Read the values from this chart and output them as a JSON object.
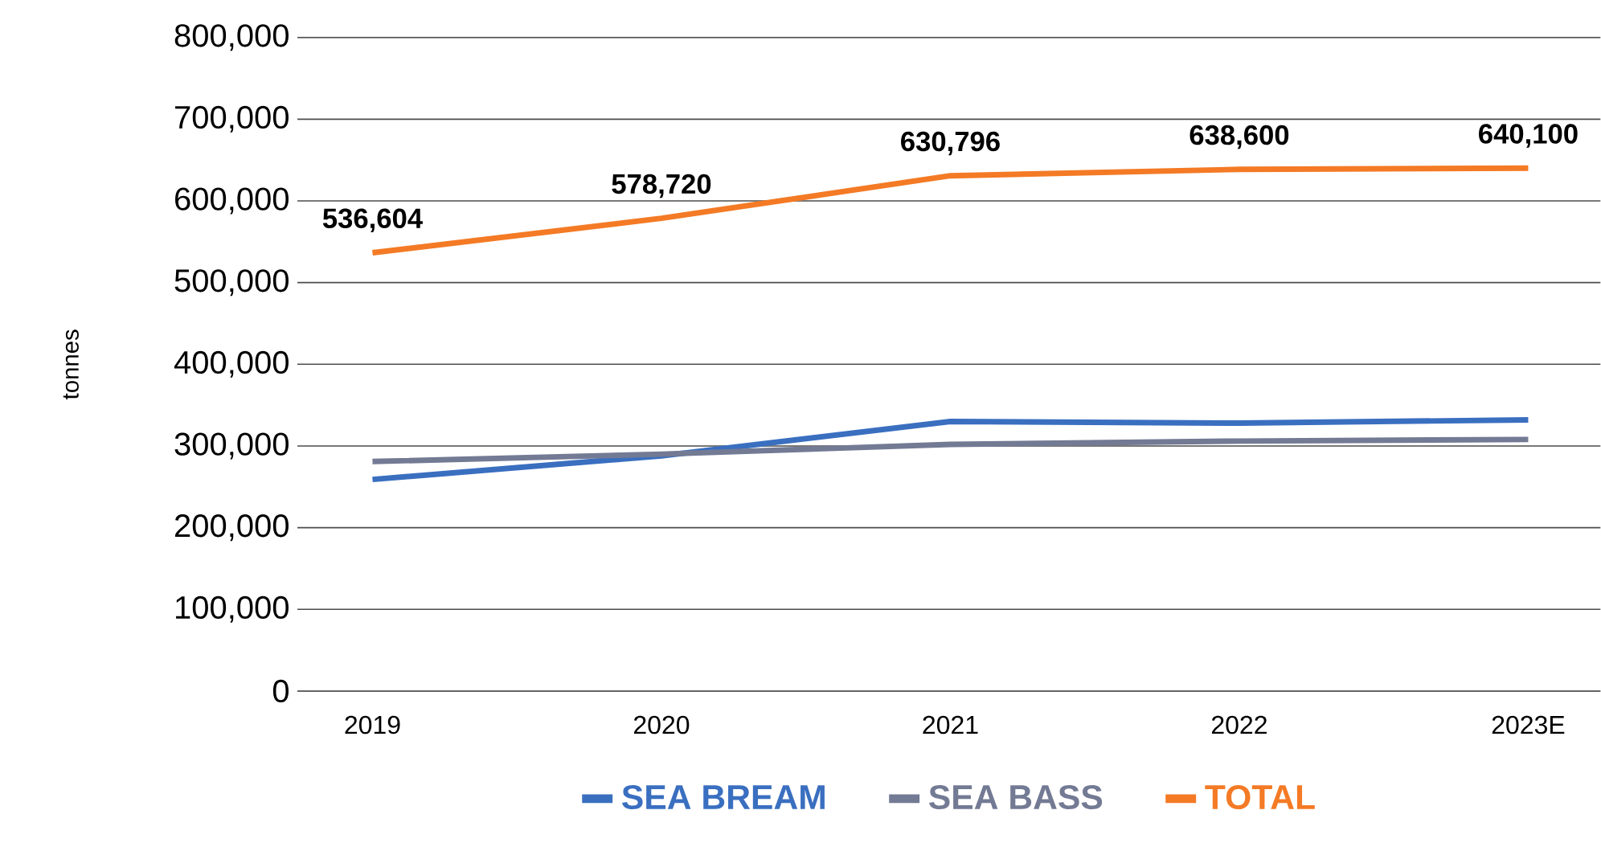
{
  "chart_data": {
    "type": "line",
    "ylabel": "tonnes",
    "categories": [
      "2019",
      "2020",
      "2021",
      "2022",
      "2023E"
    ],
    "series": [
      {
        "name": "SEA BREAM",
        "color": "#3a6fc0",
        "values": [
          259000,
          288000,
          330000,
          328000,
          332000
        ]
      },
      {
        "name": "SEA BASS",
        "color": "#737a94",
        "values": [
          281000,
          290000,
          302000,
          306000,
          308000
        ]
      },
      {
        "name": "TOTAL",
        "color": "#f47a25",
        "values": [
          536604,
          578720,
          630796,
          638600,
          640100
        ],
        "value_labels": [
          "536,604",
          "578,720",
          "630,796",
          "638,600",
          "640,100"
        ]
      }
    ],
    "ylim": [
      0,
      800000
    ],
    "yticks": [
      {
        "value": 0,
        "label": "0"
      },
      {
        "value": 100000,
        "label": "100,000"
      },
      {
        "value": 200000,
        "label": "200,000"
      },
      {
        "value": 300000,
        "label": "300,000"
      },
      {
        "value": 400000,
        "label": "400,000"
      },
      {
        "value": 500000,
        "label": "500,000"
      },
      {
        "value": 600000,
        "label": "600,000"
      },
      {
        "value": 700000,
        "label": "700,000"
      },
      {
        "value": 800000,
        "label": "800,000"
      }
    ],
    "grid": "y",
    "legend": "bottom",
    "marker": "none",
    "line_style": "solid"
  }
}
